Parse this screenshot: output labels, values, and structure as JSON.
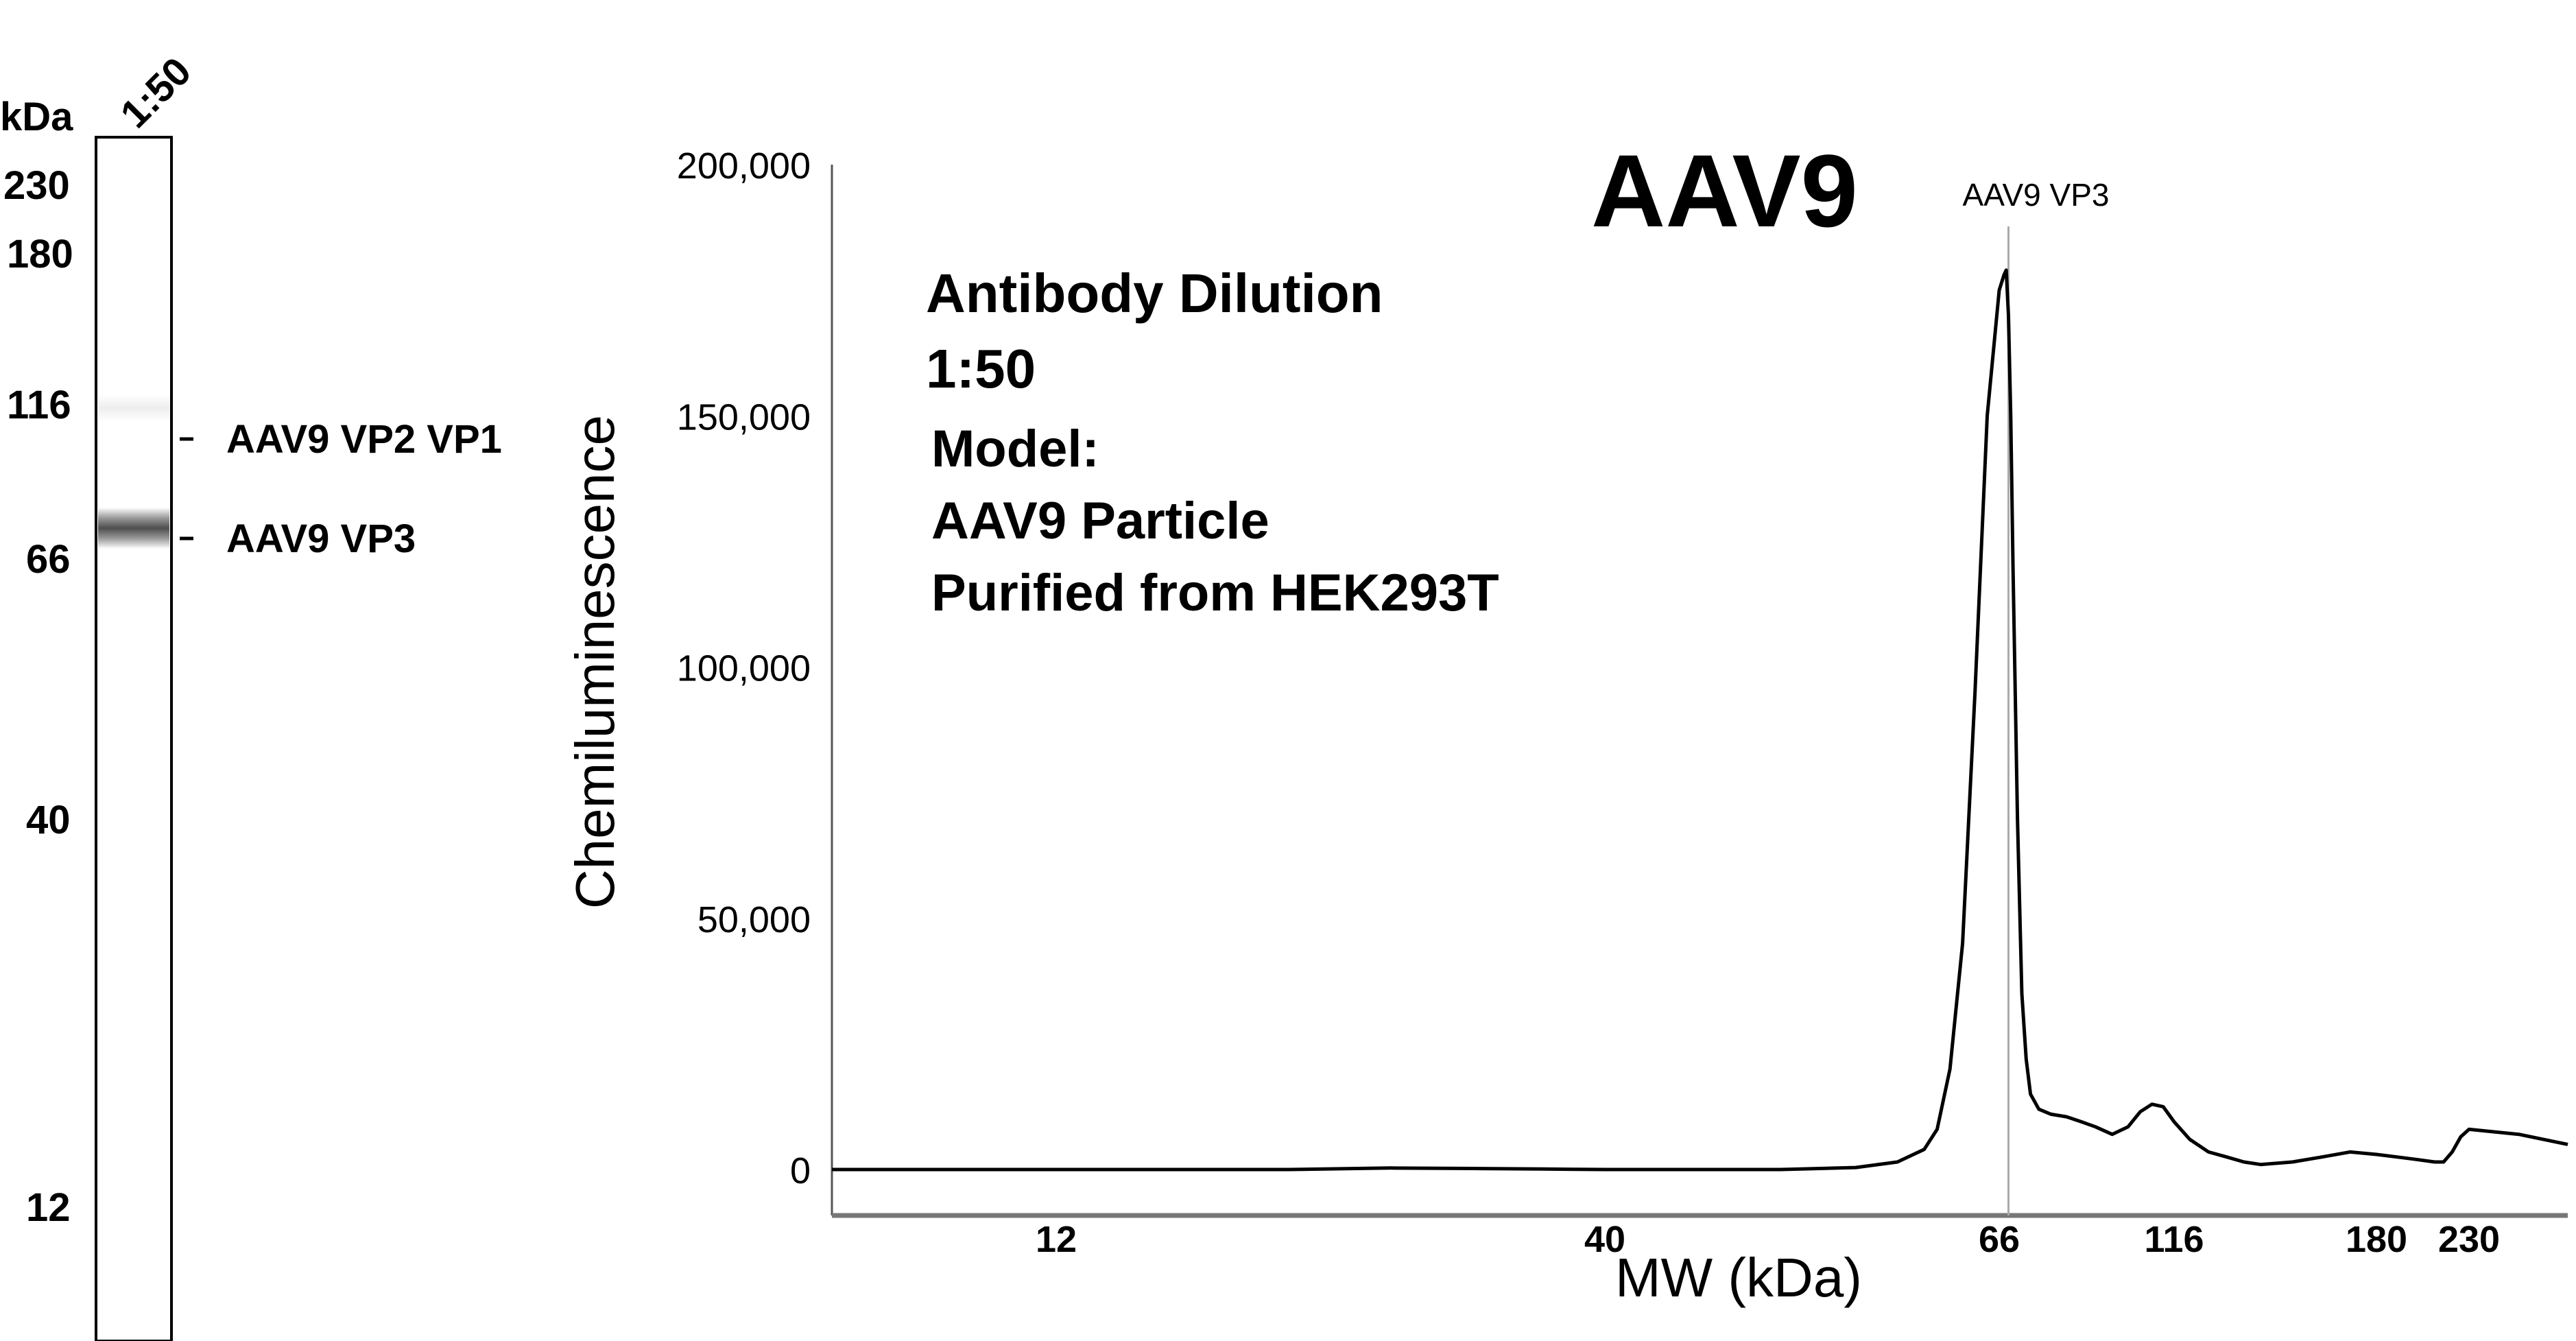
{
  "gel": {
    "unit_label": "kDa",
    "lane_label": "1:50",
    "markers": [
      "230",
      "180",
      "116",
      "66",
      "40",
      "12"
    ],
    "bands": [
      {
        "label": "AAV9 VP2 VP1"
      },
      {
        "label": "AAV9 VP3"
      }
    ]
  },
  "chart_data": {
    "type": "line",
    "title": "AAV9",
    "xlabel": "MW (kDa)",
    "ylabel": "Chemiluminescence",
    "ylim": [
      0,
      200000
    ],
    "yticks": [
      0,
      50000,
      100000,
      150000,
      200000
    ],
    "ytick_labels": [
      "0",
      "50,000",
      "100,000",
      "150,000",
      "200,000"
    ],
    "xtick_labels": [
      "12",
      "40",
      "66",
      "116",
      "180",
      "230"
    ],
    "xticks_kda": [
      12,
      40,
      66,
      116,
      180,
      230
    ],
    "x_scale": "log",
    "grid": false,
    "annotation": {
      "label": "AAV9 VP3",
      "x": 68
    },
    "info_text": [
      "Antibody Dilution",
      "1:50",
      "Model:",
      "AAV9 Particle",
      "Purified from HEK293T"
    ],
    "series": [
      {
        "x": [
          6,
          8,
          10,
          12,
          15,
          20,
          25,
          30,
          35,
          40,
          45,
          50,
          55,
          58,
          60,
          61,
          62,
          63,
          64,
          65,
          66,
          67,
          67.5,
          68,
          68.5,
          69,
          70,
          71,
          72,
          73,
          75,
          78,
          82,
          86,
          90,
          95,
          100,
          104,
          108,
          112,
          116,
          120,
          125,
          130,
          135,
          140,
          150,
          160,
          170,
          180,
          190,
          200,
          210,
          215,
          220,
          225,
          230,
          235,
          240
        ],
        "y": [
          0,
          0,
          0,
          0,
          0,
          0,
          300,
          200,
          100,
          0,
          0,
          0,
          400,
          1500,
          4000,
          8000,
          20000,
          45000,
          95000,
          150000,
          175000,
          178000,
          179000,
          170000,
          150000,
          120000,
          70000,
          35000,
          22000,
          15000,
          12000,
          11000,
          10500,
          9500,
          8500,
          7000,
          8500,
          11500,
          13000,
          12500,
          9500,
          6000,
          3500,
          2500,
          1500,
          1000,
          1500,
          2500,
          3500,
          3000,
          2500,
          2000,
          1500,
          1500,
          3500,
          6500,
          8000,
          7000,
          5000
        ]
      }
    ]
  }
}
